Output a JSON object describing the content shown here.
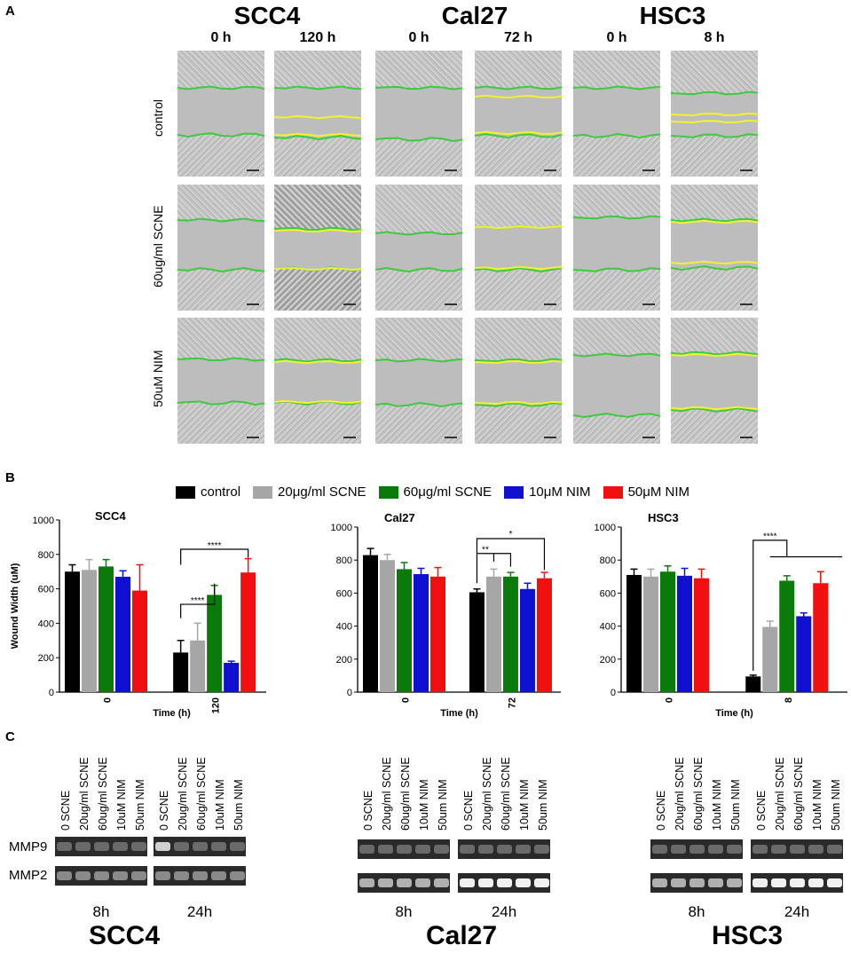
{
  "panel_labels": {
    "a": "A",
    "b": "B",
    "c": "C"
  },
  "panel_a": {
    "cell_lines": [
      {
        "name": "SCC4",
        "times": [
          "0 h",
          "120 h"
        ]
      },
      {
        "name": "Cal27",
        "times": [
          "0 h",
          "72 h"
        ]
      },
      {
        "name": "HSC3",
        "times": [
          "0 h",
          "8 h"
        ]
      }
    ],
    "row_labels": [
      "control",
      "60ug/ml SCNE",
      "50uM NIM"
    ],
    "line_colors": {
      "initial": "#3ec93e",
      "final": "#f2f230"
    }
  },
  "panel_b": {
    "legend": [
      {
        "label": "control",
        "color": "#000000"
      },
      {
        "label": "20μg/ml SCNE",
        "color": "#a6a6a6"
      },
      {
        "label": "60μg/ml SCNE",
        "color": "#0a7a0a"
      },
      {
        "label": "10μM NIM",
        "color": "#1010d0"
      },
      {
        "label": "50μM NIM",
        "color": "#f01010"
      }
    ],
    "ylabel": "Wound Width (uM)",
    "xlabel": "Time (h)"
  },
  "chart_data": [
    {
      "type": "bar",
      "title": "SCC4",
      "xlabel": "Time (h)",
      "ylabel": "Wound Width (uM)",
      "ylim": [
        0,
        1000
      ],
      "yticks": [
        "0",
        "200",
        "400",
        "600",
        "800",
        "1000"
      ],
      "categories": [
        "0",
        "120"
      ],
      "series": [
        {
          "name": "control",
          "values": [
            700,
            230
          ],
          "errors": [
            40,
            70
          ]
        },
        {
          "name": "20μg/ml SCNE",
          "values": [
            710,
            300
          ],
          "errors": [
            60,
            100
          ]
        },
        {
          "name": "60μg/ml SCNE",
          "values": [
            730,
            565
          ],
          "errors": [
            40,
            55
          ]
        },
        {
          "name": "10μM NIM",
          "values": [
            670,
            170
          ],
          "errors": [
            35,
            10
          ]
        },
        {
          "name": "50μM NIM",
          "values": [
            590,
            695
          ],
          "errors": [
            150,
            80
          ]
        }
      ],
      "significance": [
        "****",
        "****"
      ]
    },
    {
      "type": "bar",
      "title": "Cal27",
      "xlabel": "Time (h)",
      "ylabel": "",
      "ylim": [
        0,
        1000
      ],
      "yticks": [
        "0",
        "200",
        "400",
        "600",
        "800",
        "1000"
      ],
      "categories": [
        "0",
        "72"
      ],
      "series": [
        {
          "name": "control",
          "values": [
            830,
            605
          ],
          "errors": [
            40,
            20
          ]
        },
        {
          "name": "20μg/ml SCNE",
          "values": [
            800,
            700
          ],
          "errors": [
            35,
            45
          ]
        },
        {
          "name": "60μg/ml SCNE",
          "values": [
            745,
            700
          ],
          "errors": [
            40,
            25
          ]
        },
        {
          "name": "10μM NIM",
          "values": [
            715,
            625
          ],
          "errors": [
            35,
            35
          ]
        },
        {
          "name": "50μM NIM",
          "values": [
            700,
            690
          ],
          "errors": [
            55,
            35
          ]
        }
      ],
      "significance": [
        "**",
        "*"
      ]
    },
    {
      "type": "bar",
      "title": "HSC3",
      "xlabel": "Time (h)",
      "ylabel": "",
      "ylim": [
        0,
        1000
      ],
      "yticks": [
        "0",
        "200",
        "400",
        "600",
        "800",
        "1000"
      ],
      "categories": [
        "0",
        "8"
      ],
      "series": [
        {
          "name": "control",
          "values": [
            710,
            95
          ],
          "errors": [
            35,
            8
          ]
        },
        {
          "name": "20μg/ml SCNE",
          "values": [
            700,
            395
          ],
          "errors": [
            45,
            35
          ]
        },
        {
          "name": "60μg/ml SCNE",
          "values": [
            730,
            675
          ],
          "errors": [
            35,
            30
          ]
        },
        {
          "name": "10μM NIM",
          "values": [
            705,
            460
          ],
          "errors": [
            45,
            20
          ]
        },
        {
          "name": "50μM NIM",
          "values": [
            690,
            660
          ],
          "errors": [
            55,
            70
          ]
        }
      ],
      "significance": [
        "****"
      ]
    }
  ],
  "panel_c": {
    "lane_labels": [
      "0 SCNE",
      "20ug/ml SCNE",
      "60ug/ml SCNE",
      "10uM NIM",
      "50um NIM"
    ],
    "markers": [
      "MMP9",
      "MMP2"
    ],
    "times": [
      "8h",
      "24h"
    ],
    "cell_lines": [
      "SCC4",
      "Cal27",
      "HSC3"
    ]
  }
}
